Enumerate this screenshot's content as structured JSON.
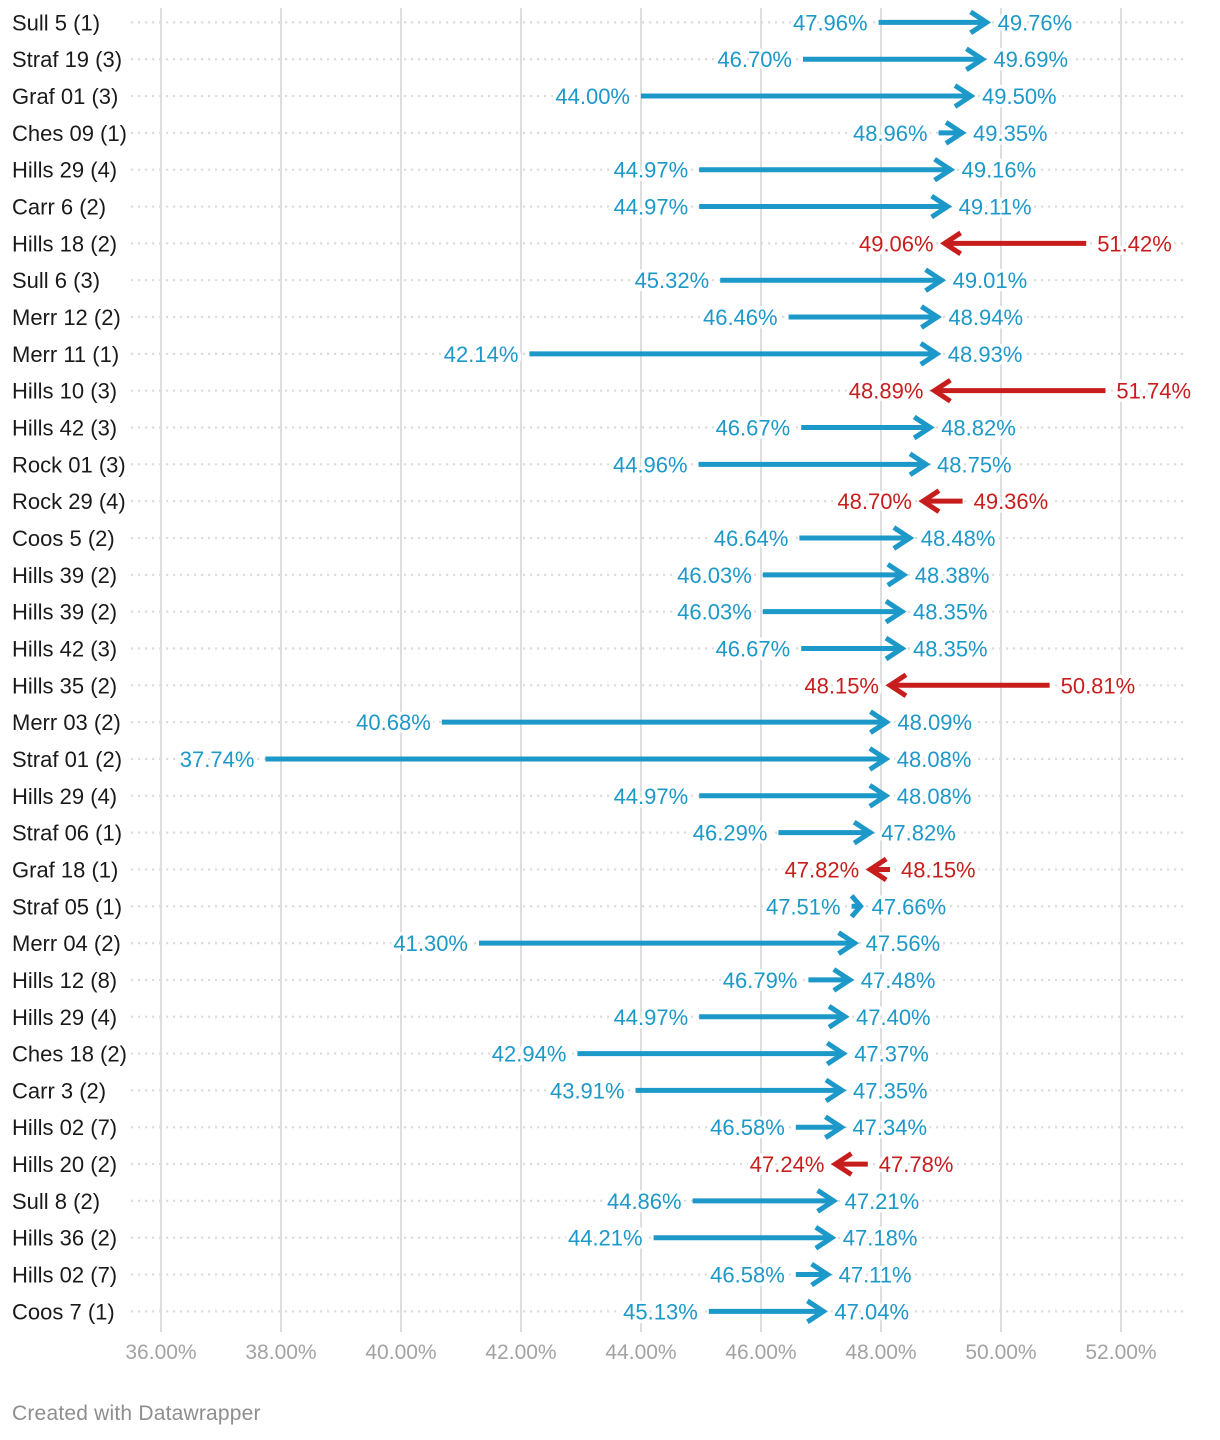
{
  "page": {
    "background": "#ffffff"
  },
  "footer": {
    "credit": "Created with Datawrapper"
  },
  "chart_data": {
    "type": "arrow",
    "orientation": "horizontal",
    "value_unit": "%",
    "value_decimals": 2,
    "grid": "on",
    "colors": {
      "increase": "#1c98c9",
      "decrease": "#c71e1d",
      "gridline": "#dedede",
      "row_guide": "#dcdcdc",
      "row_label": "#1a1a1a",
      "tick_label": "#a3a3a3",
      "background": "#ffffff"
    },
    "x_axis": {
      "min": 36,
      "max": 52,
      "tick_step": 2,
      "ticks": [
        {
          "value": 36,
          "label": "36.00%"
        },
        {
          "value": 38,
          "label": "38.00%"
        },
        {
          "value": 40,
          "label": "40.00%"
        },
        {
          "value": 42,
          "label": "42.00%"
        },
        {
          "value": 44,
          "label": "44.00%"
        },
        {
          "value": 46,
          "label": "46.00%"
        },
        {
          "value": 48,
          "label": "48.00%"
        },
        {
          "value": 50,
          "label": "50.00%"
        },
        {
          "value": 52,
          "label": "52.00%"
        }
      ]
    },
    "rows": [
      {
        "label": "Sull 5 (1)",
        "start": 47.96,
        "end": 49.76
      },
      {
        "label": "Straf 19 (3)",
        "start": 46.7,
        "end": 49.69
      },
      {
        "label": "Graf 01 (3)",
        "start": 44.0,
        "end": 49.5
      },
      {
        "label": "Ches 09 (1)",
        "start": 48.96,
        "end": 49.35
      },
      {
        "label": "Hills 29 (4)",
        "start": 44.97,
        "end": 49.16
      },
      {
        "label": "Carr 6 (2)",
        "start": 44.97,
        "end": 49.11
      },
      {
        "label": "Hills 18 (2)",
        "start": 51.42,
        "end": 49.06
      },
      {
        "label": "Sull 6 (3)",
        "start": 45.32,
        "end": 49.01
      },
      {
        "label": "Merr 12 (2)",
        "start": 46.46,
        "end": 48.94
      },
      {
        "label": "Merr 11 (1)",
        "start": 42.14,
        "end": 48.93
      },
      {
        "label": "Hills 10 (3)",
        "start": 51.74,
        "end": 48.89
      },
      {
        "label": "Hills 42 (3)",
        "start": 46.67,
        "end": 48.82
      },
      {
        "label": "Rock 01 (3)",
        "start": 44.96,
        "end": 48.75
      },
      {
        "label": "Rock 29 (4)",
        "start": 49.36,
        "end": 48.7
      },
      {
        "label": "Coos 5 (2)",
        "start": 46.64,
        "end": 48.48
      },
      {
        "label": "Hills 39 (2)",
        "start": 46.03,
        "end": 48.38
      },
      {
        "label": "Hills 39 (2)",
        "start": 46.03,
        "end": 48.35
      },
      {
        "label": "Hills 42 (3)",
        "start": 46.67,
        "end": 48.35
      },
      {
        "label": "Hills 35 (2)",
        "start": 50.81,
        "end": 48.15
      },
      {
        "label": "Merr 03 (2)",
        "start": 40.68,
        "end": 48.09
      },
      {
        "label": "Straf 01 (2)",
        "start": 37.74,
        "end": 48.08
      },
      {
        "label": "Hills 29 (4)",
        "start": 44.97,
        "end": 48.08
      },
      {
        "label": "Straf 06 (1)",
        "start": 46.29,
        "end": 47.82
      },
      {
        "label": "Graf 18 (1)",
        "start": 48.15,
        "end": 47.82
      },
      {
        "label": "Straf 05 (1)",
        "start": 47.51,
        "end": 47.66
      },
      {
        "label": "Merr 04 (2)",
        "start": 41.3,
        "end": 47.56
      },
      {
        "label": "Hills 12 (8)",
        "start": 46.79,
        "end": 47.48
      },
      {
        "label": "Hills 29 (4)",
        "start": 44.97,
        "end": 47.4
      },
      {
        "label": "Ches 18 (2)",
        "start": 42.94,
        "end": 47.37
      },
      {
        "label": "Carr 3 (2)",
        "start": 43.91,
        "end": 47.35
      },
      {
        "label": "Hills 02 (7)",
        "start": 46.58,
        "end": 47.34
      },
      {
        "label": "Hills 20 (2)",
        "start": 47.78,
        "end": 47.24
      },
      {
        "label": "Sull 8 (2)",
        "start": 44.86,
        "end": 47.21
      },
      {
        "label": "Hills 36 (2)",
        "start": 44.21,
        "end": 47.18
      },
      {
        "label": "Hills 02 (7)",
        "start": 46.58,
        "end": 47.11
      },
      {
        "label": "Coos 7 (1)",
        "start": 45.13,
        "end": 47.04
      }
    ]
  }
}
